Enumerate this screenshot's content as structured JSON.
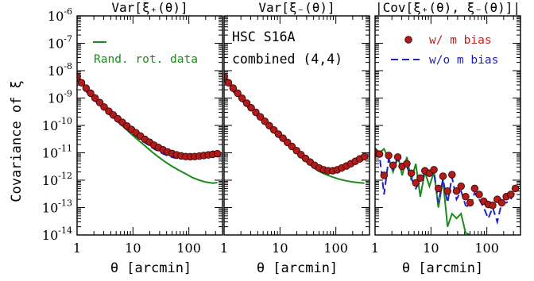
{
  "chart_data": {
    "type": "line",
    "ylabel": "Covariance of ξ",
    "xlabel": "θ [arcmin]",
    "x_log": true,
    "y_log": true,
    "xlim": [
      1,
      400
    ],
    "ylim": [
      1e-14,
      1e-06
    ],
    "x_ticks": [
      1,
      10,
      100
    ],
    "x_tick_labels": [
      "1",
      "10",
      "100"
    ],
    "y_ticks": [
      1e-14,
      1e-13,
      1e-12,
      1e-11,
      1e-10,
      1e-09,
      1e-08,
      1e-07,
      1e-06
    ],
    "y_tick_exponents": [
      "-14",
      "-13",
      "-12",
      "-11",
      "-10",
      "-9",
      "-8",
      "-7",
      "-6"
    ],
    "y_tick_base": "10",
    "colors": {
      "rand_rot": "#1a8a1a",
      "w_m_bias_fill": "#b31a1a",
      "w_m_bias_edge": "#3a0a0a",
      "wo_m_bias": "#1f1fcc",
      "wo_m_bias_text": "#1f1fbb",
      "w_m_bias_text": "#cc1a1a"
    },
    "panels": [
      {
        "title": "Var[ξ₊(θ)]",
        "legend": {
          "rand_rot_label": "Rand. rot. data"
        },
        "series": [
          {
            "name": "w/ m bias",
            "style": "markers",
            "x": [
              1.0,
              1.2,
              1.45,
              1.75,
              2.1,
              2.55,
              3.05,
              3.7,
              4.45,
              5.35,
              6.45,
              7.8,
              9.4,
              11.3,
              13.6,
              16.4,
              19.8,
              23.8,
              28.7,
              34.6,
              41.7,
              50.2,
              60.5,
              72.9,
              87.9,
              106,
              127,
              154,
              185,
              223,
              268,
              324
            ],
            "y": [
              6e-09,
              3.6e-09,
              2.3e-09,
              1.5e-09,
              1e-09,
              6.8e-10,
              4.7e-10,
              3.3e-10,
              2.4e-10,
              1.75e-10,
              1.3e-10,
              9.5e-11,
              7.1e-11,
              5.4e-11,
              4.1e-11,
              3.1e-11,
              2.45e-11,
              1.9e-11,
              1.55e-11,
              1.28e-11,
              1.08e-11,
              9.4e-12,
              8.4e-12,
              7.7e-12,
              7.3e-12,
              7.2e-12,
              7.3e-12,
              7.6e-12,
              8e-12,
              8.4e-12,
              8.8e-12,
              9.3e-12
            ]
          },
          {
            "name": "w/o m bias",
            "style": "dashed",
            "x": [
              1.0,
              1.2,
              1.45,
              1.75,
              2.1,
              2.55,
              3.05,
              3.7,
              4.45,
              5.35,
              6.45,
              7.8,
              9.4,
              11.3,
              13.6,
              16.4,
              19.8,
              23.8,
              28.7,
              34.6,
              41.7,
              50.2,
              60.5,
              72.9,
              87.9,
              106,
              127,
              154,
              185,
              223,
              268,
              324
            ],
            "y": [
              4.5e-09,
              2.8e-09,
              1.75e-09,
              1.15e-09,
              7.8e-10,
              5.4e-10,
              3.7e-10,
              2.6e-10,
              1.85e-10,
              1.35e-10,
              1e-10,
              7.4e-11,
              5.5e-11,
              4.1e-11,
              3.1e-11,
              2.35e-11,
              1.8e-11,
              1.4e-11,
              1.12e-11,
              9.2e-12,
              7.8e-12,
              6.9e-12,
              6.4e-12,
              6.3e-12,
              6.5e-12,
              6.9e-12,
              7.3e-12,
              7.8e-12,
              8.2e-12,
              8.6e-12,
              8.9e-12,
              9.2e-12
            ]
          },
          {
            "name": "Rand. rot. data",
            "style": "solid",
            "x": [
              1.0,
              1.3,
              1.75,
              2.3,
              3.05,
              4.05,
              5.35,
              7.1,
              9.4,
              12.4,
              16.4,
              21.7,
              28.7,
              38,
              50.2,
              66.4,
              87.9,
              116,
              154,
              203,
              268,
              324
            ],
            "y": [
              5.5e-09,
              2.8e-09,
              1.45e-09,
              8e-10,
              4.4e-10,
              2.4e-10,
              1.4e-10,
              8e-11,
              4.8e-11,
              2.9e-11,
              1.8e-11,
              1.1e-11,
              7e-12,
              4.6e-12,
              3.2e-12,
              2.3e-12,
              1.7e-12,
              1.25e-12,
              1e-12,
              8.5e-13,
              7.8e-13,
              8.2e-13
            ]
          }
        ]
      },
      {
        "title": "Var[ξ₋(θ)]",
        "annotation": [
          "HSC S16A",
          "combined (4,4)"
        ],
        "series": [
          {
            "name": "w/ m bias",
            "style": "markers",
            "x": [
              1.0,
              1.2,
              1.45,
              1.75,
              2.1,
              2.55,
              3.05,
              3.7,
              4.45,
              5.35,
              6.45,
              7.8,
              9.4,
              11.3,
              13.6,
              16.4,
              19.8,
              23.8,
              28.7,
              34.6,
              41.7,
              50.2,
              60.5,
              72.9,
              87.9,
              106,
              127,
              154,
              185,
              223,
              268,
              324
            ],
            "y": [
              6e-09,
              3.6e-09,
              2.3e-09,
              1.5e-09,
              9.8e-10,
              6.5e-10,
              4.4e-10,
              3e-10,
              2.05e-10,
              1.42e-10,
              9.8e-11,
              6.8e-11,
              4.8e-11,
              3.4e-11,
              2.4e-11,
              1.7e-11,
              1.2e-11,
              8.5e-12,
              6.2e-12,
              4.6e-12,
              3.5e-12,
              2.8e-12,
              2.4e-12,
              2.2e-12,
              2.2e-12,
              2.4e-12,
              2.8e-12,
              3.3e-12,
              4e-12,
              4.9e-12,
              6e-12,
              7.2e-12
            ]
          },
          {
            "name": "w/o m bias",
            "style": "dashed",
            "x": [
              1.0,
              1.2,
              1.45,
              1.75,
              2.1,
              2.55,
              3.05,
              3.7,
              4.45,
              5.35,
              6.45,
              7.8,
              9.4,
              11.3,
              13.6,
              16.4,
              19.8,
              23.8,
              28.7,
              34.6,
              41.7,
              50.2,
              60.5,
              72.9,
              87.9,
              106,
              127,
              154,
              185,
              223,
              268,
              324
            ],
            "y": [
              4.5e-09,
              2.8e-09,
              1.75e-09,
              1.15e-09,
              7.6e-10,
              5.1e-10,
              3.5e-10,
              2.4e-10,
              1.65e-10,
              1.15e-10,
              8e-11,
              5.6e-11,
              3.9e-11,
              2.75e-11,
              1.95e-11,
              1.4e-11,
              1e-11,
              7.1e-12,
              5.1e-12,
              3.8e-12,
              2.9e-12,
              2.3e-12,
              2e-12,
              1.85e-12,
              1.9e-12,
              2.1e-12,
              2.5e-12,
              3e-12,
              3.7e-12,
              4.5e-12,
              5.5e-12,
              6.7e-12
            ]
          },
          {
            "name": "Rand. rot. data",
            "style": "solid",
            "x": [
              1.0,
              1.3,
              1.75,
              2.3,
              3.05,
              4.05,
              5.35,
              7.1,
              9.4,
              12.4,
              16.4,
              21.7,
              28.7,
              38,
              50.2,
              66.4,
              87.9,
              116,
              154,
              203,
              268,
              324
            ],
            "y": [
              5.5e-09,
              2.8e-09,
              1.45e-09,
              7.8e-10,
              4.2e-10,
              2.3e-10,
              1.3e-10,
              7.5e-11,
              4.4e-11,
              2.6e-11,
              1.5e-11,
              8.5e-12,
              5e-12,
              3.1e-12,
              2.1e-12,
              1.6e-12,
              1.3e-12,
              1.08e-12,
              9.5e-13,
              8.6e-13,
              8e-13,
              7.8e-13
            ]
          }
        ]
      },
      {
        "title": "|Cov[ξ₊(θ), ξ₋(θ)]|",
        "legend": {
          "w_m_bias_label": "w/ m bias",
          "wo_m_bias_label": "w/o m bias"
        },
        "series": [
          {
            "name": "w/ m bias",
            "style": "markers",
            "x": [
              1.0,
              1.2,
              1.45,
              1.75,
              2.1,
              2.55,
              3.05,
              3.7,
              4.45,
              5.35,
              6.45,
              7.8,
              9.4,
              11.3,
              13.6,
              16.4,
              19.8,
              23.8,
              28.7,
              34.6,
              41.7,
              50.2,
              60.5,
              72.9,
              87.9,
              106,
              127,
              154,
              185,
              223,
              268,
              324
            ],
            "y": [
              1e-11,
              9e-12,
              1.5e-12,
              8e-12,
              3.5e-12,
              7e-12,
              3.2e-12,
              4e-12,
              1.8e-12,
              8e-13,
              1.2e-12,
              2.2e-12,
              1.8e-12,
              2.4e-12,
              5e-13,
              1.4e-12,
              4e-13,
              1.6e-12,
              4e-13,
              6e-13,
              2.5e-13,
              1.5e-13,
              5e-13,
              3e-13,
              1.7e-13,
              1.3e-13,
              1.2e-13,
              2e-13,
              1.5e-13,
              2.5e-13,
              3e-13,
              5e-13
            ]
          },
          {
            "name": "w/o m bias",
            "style": "dashed",
            "x": [
              1.0,
              1.2,
              1.45,
              1.75,
              2.1,
              2.55,
              3.05,
              3.7,
              4.45,
              5.35,
              6.45,
              7.8,
              9.4,
              11.3,
              13.6,
              16.4,
              19.8,
              23.8,
              28.7,
              34.6,
              41.7,
              50.2,
              60.5,
              72.9,
              87.9,
              106,
              127,
              154,
              185,
              223,
              268,
              324
            ],
            "y": [
              1.2e-11,
              8e-12,
              3e-13,
              6e-12,
              2.5e-12,
              6e-12,
              2.5e-12,
              3.2e-12,
              1.2e-12,
              5e-13,
              9e-13,
              1.9e-12,
              1.6e-12,
              2.1e-12,
              1.5e-13,
              1.1e-12,
              1.5e-13,
              1.3e-12,
              2e-13,
              4e-13,
              1.2e-13,
              1e-13,
              3.5e-13,
              2e-13,
              1e-13,
              4e-14,
              1e-13,
              3e-14,
              1.5e-13,
              1.5e-13,
              2e-13,
              4e-13
            ]
          },
          {
            "name": "Rand. rot. data",
            "style": "solid",
            "x": [
              1.0,
              1.2,
              1.45,
              1.75,
              2.1,
              2.55,
              3.05,
              3.7,
              4.45,
              5.35,
              6.45,
              7.8,
              9.4,
              11.3,
              13.6,
              16.4,
              19.8,
              23.8,
              28.7,
              34.6,
              41.7,
              50.2
            ],
            "y": [
              1.5e-11,
              1e-11,
              1.4e-11,
              6e-12,
              2e-12,
              8e-12,
              1.5e-12,
              7e-12,
              1e-12,
              4e-12,
              2.5e-13,
              2e-12,
              6e-13,
              2e-12,
              1e-13,
              1e-12,
              2e-14,
              6e-14,
              4e-14,
              6e-14,
              1.2e-14,
              1e-14
            ]
          }
        ]
      }
    ]
  }
}
